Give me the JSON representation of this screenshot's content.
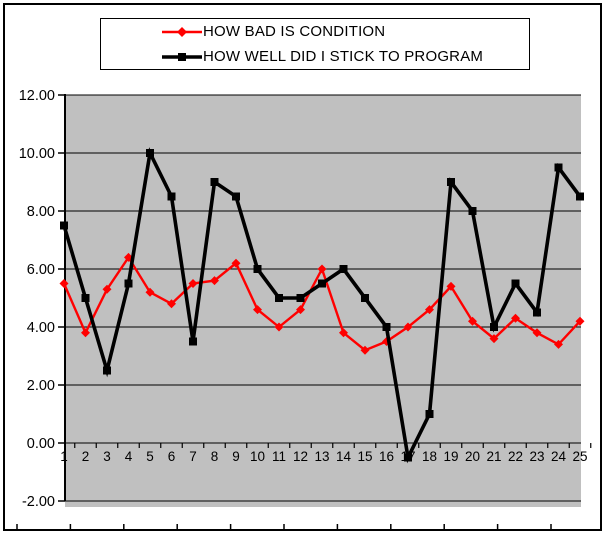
{
  "window": {
    "background": "#FFFFFF",
    "border_color": "#000000",
    "plot_background": "#C0C0C0"
  },
  "legend": {
    "items": [
      {
        "label": "HOW BAD IS CONDITION",
        "color": "#FF0000",
        "marker": "diamond"
      },
      {
        "label": "HOW WELL DID I STICK TO PROGRAM",
        "color": "#000000",
        "marker": "square"
      }
    ]
  },
  "chart_data": {
    "type": "line",
    "title": "",
    "xlabel": "",
    "ylabel": "",
    "x": [
      1,
      2,
      3,
      4,
      5,
      6,
      7,
      8,
      9,
      10,
      11,
      12,
      13,
      14,
      15,
      16,
      17,
      18,
      19,
      20,
      21,
      22,
      23,
      24,
      25
    ],
    "x_tick_labels": [
      "1",
      "2",
      "3",
      "4",
      "5",
      "6",
      "7",
      "8",
      "9",
      "10",
      "11",
      "12",
      "13",
      "14",
      "15",
      "16",
      "17",
      "18",
      "19",
      "20",
      "21",
      "22",
      "23",
      "24",
      "25"
    ],
    "series": [
      {
        "name": "HOW BAD IS CONDITION",
        "color": "#FF0000",
        "marker": "diamond",
        "line_width": 2.4,
        "values": [
          5.5,
          3.8,
          5.3,
          6.4,
          5.2,
          4.8,
          5.5,
          5.6,
          6.2,
          4.6,
          4.0,
          4.6,
          6.0,
          3.8,
          3.2,
          3.5,
          4.0,
          4.6,
          5.4,
          4.2,
          3.6,
          4.3,
          3.8,
          3.4,
          4.2
        ]
      },
      {
        "name": "HOW WELL DID I STICK TO PROGRAM",
        "color": "#000000",
        "marker": "square",
        "line_width": 3.6,
        "values": [
          7.5,
          5.0,
          2.5,
          5.5,
          10.0,
          8.5,
          3.5,
          9.0,
          8.5,
          6.0,
          5.0,
          5.0,
          5.5,
          6.0,
          5.0,
          4.0,
          -0.5,
          1.0,
          9.0,
          8.0,
          4.0,
          5.5,
          4.5,
          9.5,
          8.5
        ]
      }
    ],
    "ylim": [
      -2,
      12
    ],
    "y_tick_step": 2,
    "y_tick_labels": [
      "12.00",
      "10.00",
      "8.00",
      "6.00",
      "4.00",
      "2.00",
      "0.00",
      "-2.00"
    ],
    "grid": "horizontal",
    "gridline_color": "#000000",
    "legend_position": "top"
  }
}
